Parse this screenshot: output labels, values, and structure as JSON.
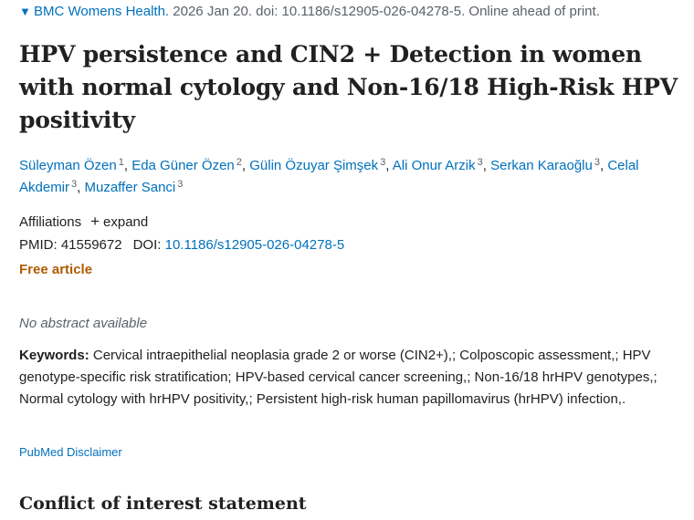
{
  "citation": {
    "journal": "BMC Womens Health.",
    "details": " 2026 Jan 20. doi: 10.1186/s12905-026-04278-5. Online ahead of print."
  },
  "title": "HPV persistence and CIN2 + Detection in women with normal cytology and Non-16/18 High-Risk HPV positivity",
  "authors": [
    {
      "name": "Süleyman Özen",
      "aff": "1",
      "sep": ", "
    },
    {
      "name": "Eda Güner Özen",
      "aff": "2",
      "sep": ", "
    },
    {
      "name": "Gülin Özuyar Şimşek",
      "aff": "3",
      "sep": ", "
    },
    {
      "name": "Ali Onur Arzik",
      "aff": "3",
      "sep": ", "
    },
    {
      "name": "Serkan Karaoğlu",
      "aff": "3",
      "sep": ", "
    },
    {
      "name": "Celal Akdemir",
      "aff": "3",
      "sep": ", "
    },
    {
      "name": "Muzaffer Sanci",
      "aff": "3",
      "sep": ""
    }
  ],
  "affiliations": {
    "label": "Affiliations",
    "expand_label": "expand"
  },
  "identifiers": {
    "pmid_label": "PMID: ",
    "pmid": "41559672",
    "doi_label": "DOI: ",
    "doi": "10.1186/s12905-026-04278-5"
  },
  "free_article": "Free article",
  "no_abstract": "No abstract available",
  "keywords": {
    "label": "Keywords:",
    "text": " Cervical intraepithelial neoplasia grade 2 or worse (CIN2+),; Colposcopic assessment,; HPV genotype-specific risk stratification; HPV-based cervical cancer screening,; Non-16/18 hrHPV genotypes,; Normal cytology with hrHPV positivity,; Persistent high-risk human papillomavirus (hrHPV) infection,."
  },
  "disclaimer": "PubMed Disclaimer",
  "conflict_heading": "Conflict of interest statement",
  "colors": {
    "link": "#0071bc",
    "free_article": "#b05b00",
    "text": "#212121",
    "muted": "#5b616b"
  }
}
